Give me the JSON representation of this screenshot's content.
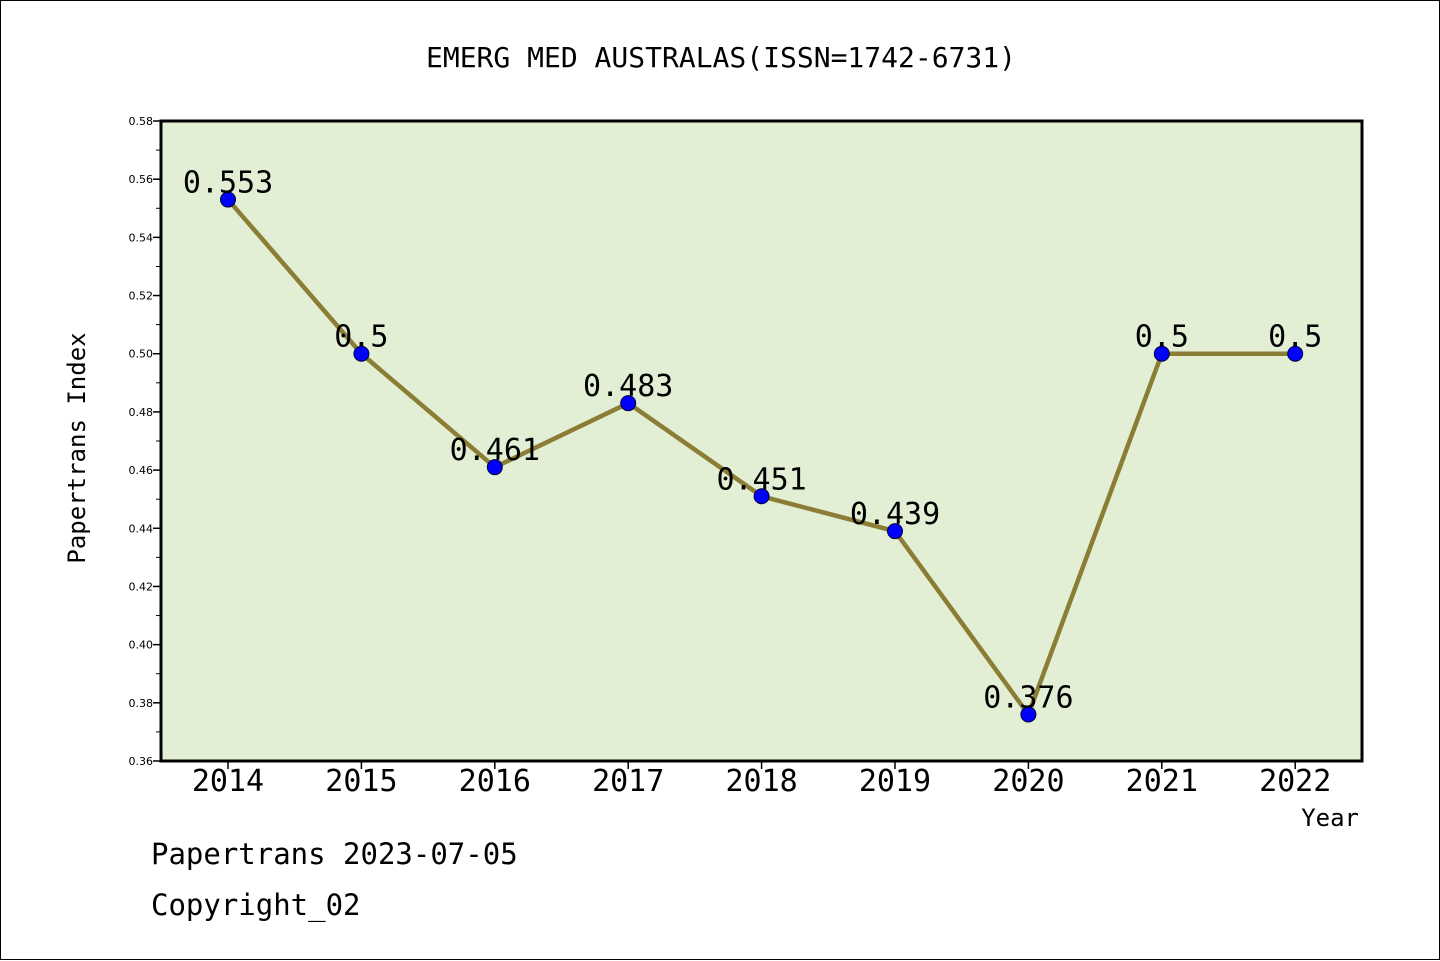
{
  "chart_data": {
    "type": "line",
    "title": "EMERG MED AUSTRALAS(ISSN=1742-6731)",
    "xlabel": "Year",
    "ylabel": "Papertrans Index",
    "categories": [
      "2014",
      "2015",
      "2016",
      "2017",
      "2018",
      "2019",
      "2020",
      "2021",
      "2022"
    ],
    "values": [
      0.553,
      0.5,
      0.461,
      0.483,
      0.451,
      0.439,
      0.376,
      0.5,
      0.5
    ],
    "data_labels": [
      "0.553",
      "0.5",
      "0.461",
      "0.483",
      "0.451",
      "0.439",
      "0.376",
      "0.5",
      "0.5"
    ],
    "ylim": [
      0.36,
      0.58
    ],
    "yticks": [
      "0.36",
      "0.38",
      "0.40",
      "0.42",
      "0.44",
      "0.46",
      "0.48",
      "0.50",
      "0.52",
      "0.54",
      "0.56",
      "0.58"
    ],
    "grid": false,
    "colors": {
      "plot_background": "#e2efd4",
      "line": "#8b7d35",
      "marker": "#0000ff"
    }
  },
  "footer": {
    "line1": "Papertrans 2023-07-05",
    "line2": "Copyright_02"
  }
}
